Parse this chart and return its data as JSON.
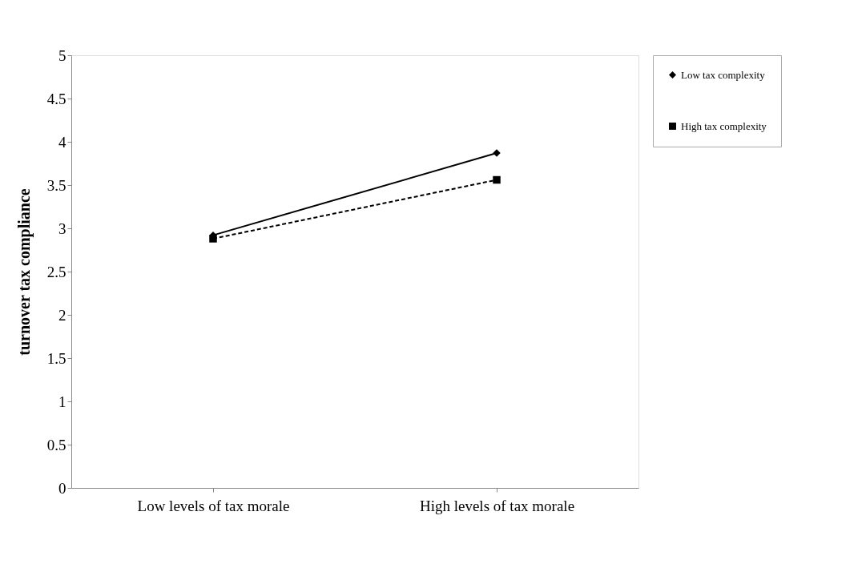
{
  "chart_data": {
    "type": "line",
    "ylabel": "turnover tax compliance",
    "categories": [
      "Low levels of tax morale",
      "High levels of tax morale"
    ],
    "series": [
      {
        "name": "Low tax complexity",
        "color": "#000000",
        "values": [
          2.92,
          3.87
        ],
        "marker": "diamond",
        "line_style": "solid"
      },
      {
        "name": "High tax complexity",
        "color": "#000000",
        "values": [
          2.88,
          3.56
        ],
        "marker": "square",
        "line_style": "dashed"
      }
    ],
    "ylim": [
      0,
      5
    ],
    "yticks": [
      0,
      0.5,
      1,
      1.5,
      2,
      2.5,
      3,
      3.5,
      4,
      4.5,
      5
    ],
    "grid": false,
    "legend": "right"
  }
}
